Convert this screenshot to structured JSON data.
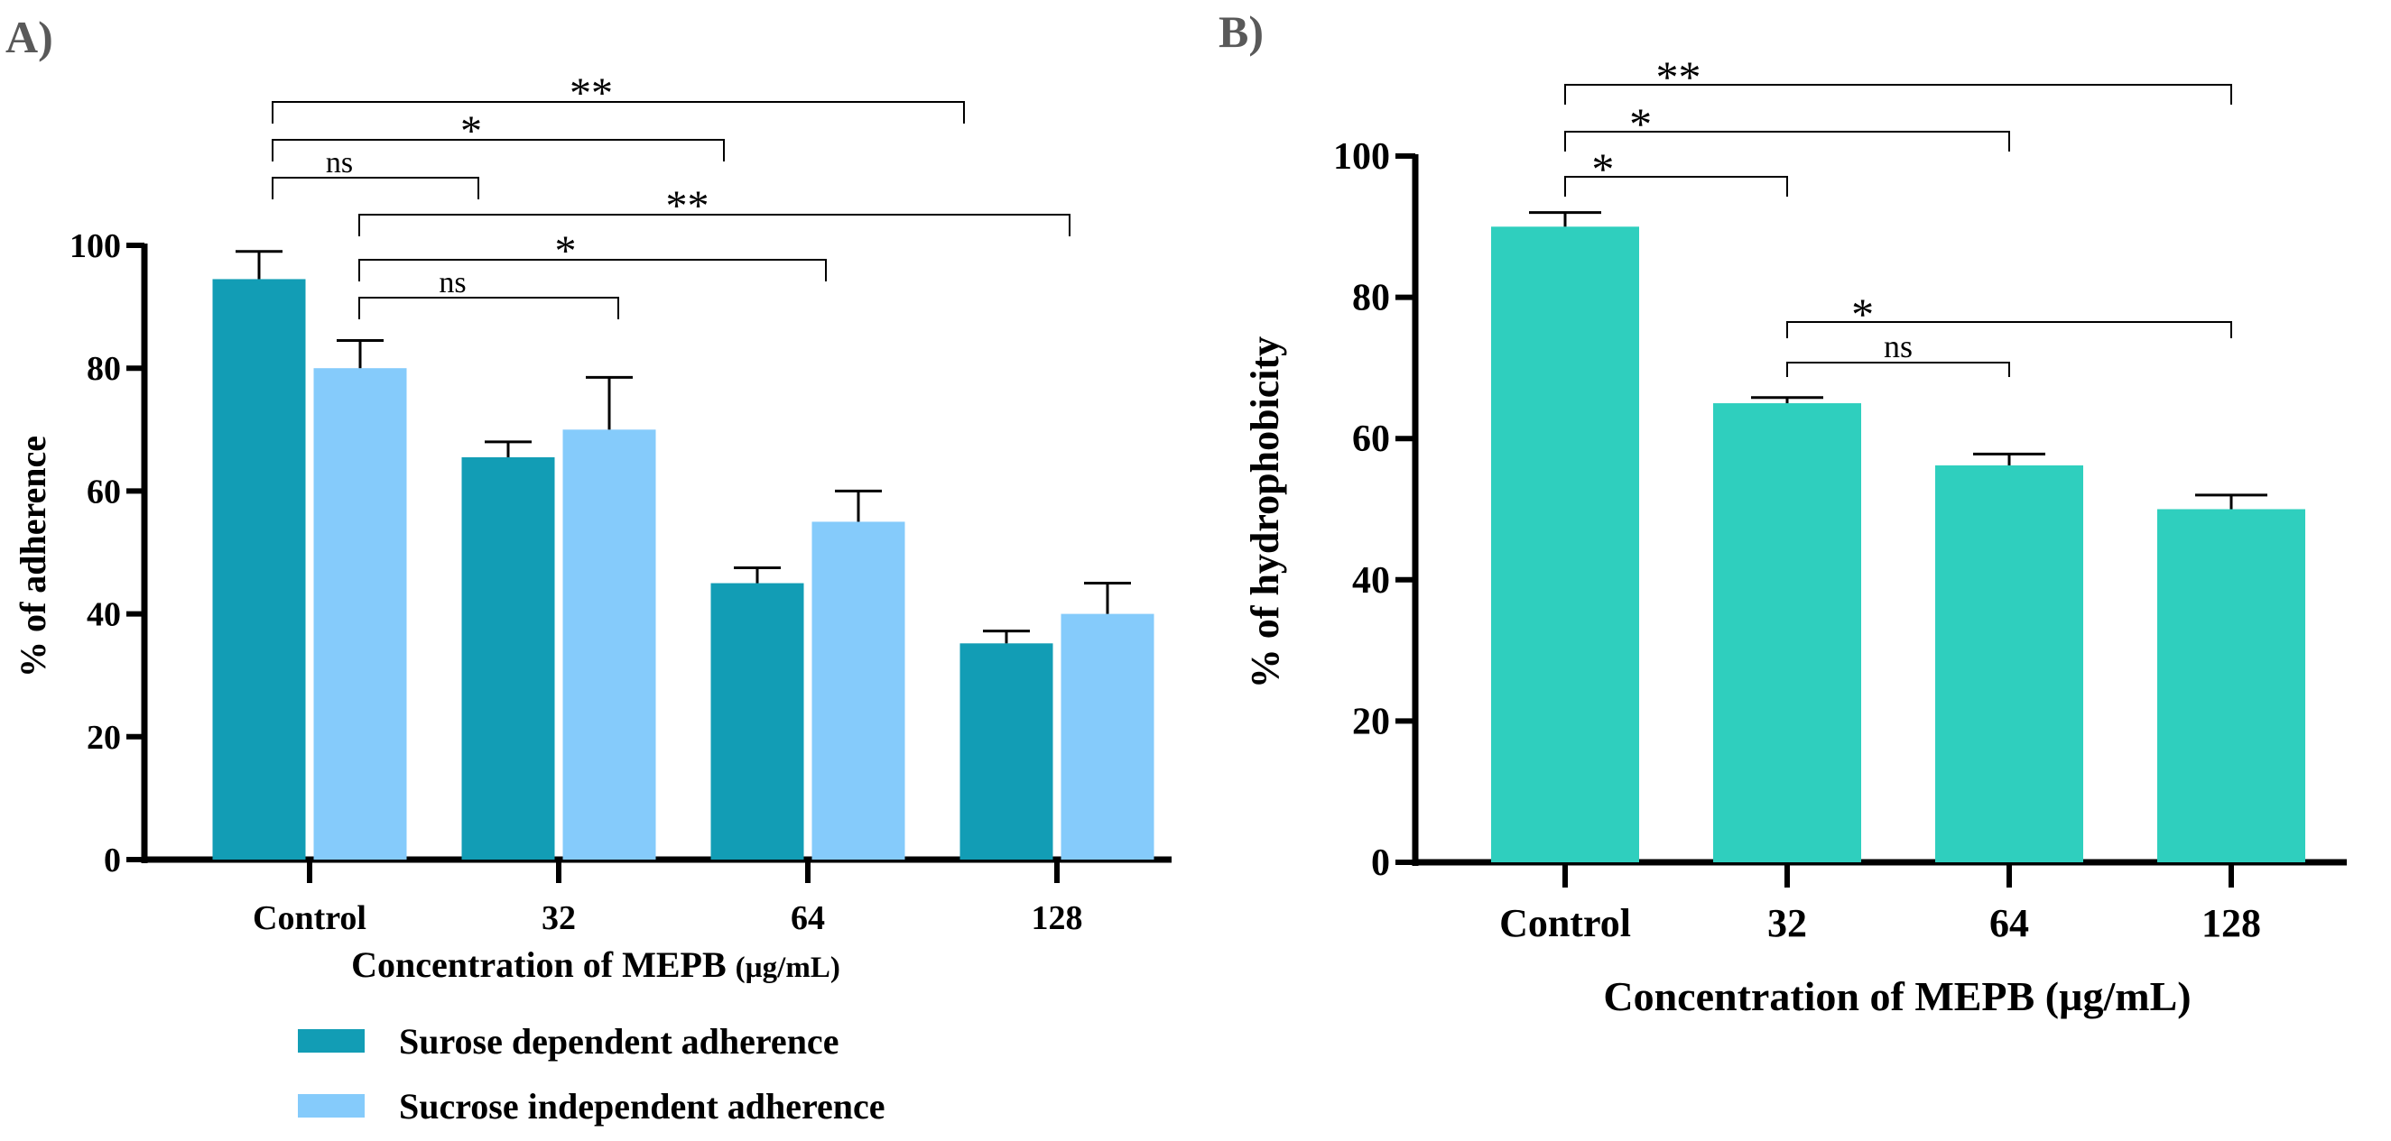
{
  "colors": {
    "sucrose_dependent": "#129db5",
    "sucrose_independent": "#85cbfb",
    "hydrophobicity": "#2fcfbe",
    "panel_label": "#595959"
  },
  "chart_data": [
    {
      "panel": "A)",
      "type": "bar",
      "categories": [
        "Control",
        "32",
        "64",
        "128"
      ],
      "xlabel": "Concentration of MEPB",
      "xlabel_unit": "(µg/mL)",
      "ylabel": "% of adherence",
      "ylim": [
        0,
        100
      ],
      "yticks": [
        "0",
        "20",
        "40",
        "60",
        "80",
        "100"
      ],
      "series": [
        {
          "name": "Surose dependent adherence",
          "values": [
            94.5,
            65.5,
            45,
            35.2
          ],
          "errors": [
            4.5,
            2.5,
            2.5,
            2
          ]
        },
        {
          "name": "Sucrose independent adherence",
          "values": [
            80,
            70,
            55,
            40
          ],
          "errors": [
            4.5,
            8.5,
            5,
            5
          ]
        }
      ],
      "comparisons": [
        {
          "from": "Control",
          "to": "32",
          "series": "Surose dependent adherence",
          "label": "ns"
        },
        {
          "from": "Control",
          "to": "64",
          "series": "Surose dependent adherence",
          "label": "*"
        },
        {
          "from": "Control",
          "to": "128",
          "series": "Surose dependent adherence",
          "label": "**"
        },
        {
          "from": "Control",
          "to": "32",
          "series": "Sucrose independent adherence",
          "label": "ns"
        },
        {
          "from": "Control",
          "to": "64",
          "series": "Sucrose independent adherence",
          "label": "*"
        },
        {
          "from": "Control",
          "to": "128",
          "series": "Sucrose independent adherence",
          "label": "**"
        }
      ],
      "legend": {
        "position": "bottom-left"
      }
    },
    {
      "panel": "B)",
      "type": "bar",
      "categories": [
        "Control",
        "32",
        "64",
        "128"
      ],
      "xlabel": "Concentration of MEPB (µg/mL)",
      "ylabel": "% of hydrophobicity",
      "ylim": [
        0,
        100
      ],
      "yticks": [
        "0",
        "20",
        "40",
        "60",
        "80",
        "100"
      ],
      "series": [
        {
          "name": "Hydrophobicity",
          "values": [
            90,
            65,
            56.2,
            50
          ],
          "errors": [
            2,
            0.8,
            1.6,
            2
          ]
        }
      ],
      "comparisons": [
        {
          "from": "Control",
          "to": "32",
          "label": "*"
        },
        {
          "from": "Control",
          "to": "64",
          "label": "*"
        },
        {
          "from": "Control",
          "to": "128",
          "label": "**"
        },
        {
          "from": "32",
          "to": "64",
          "label": "ns"
        },
        {
          "from": "32",
          "to": "128",
          "label": "*"
        }
      ]
    }
  ]
}
